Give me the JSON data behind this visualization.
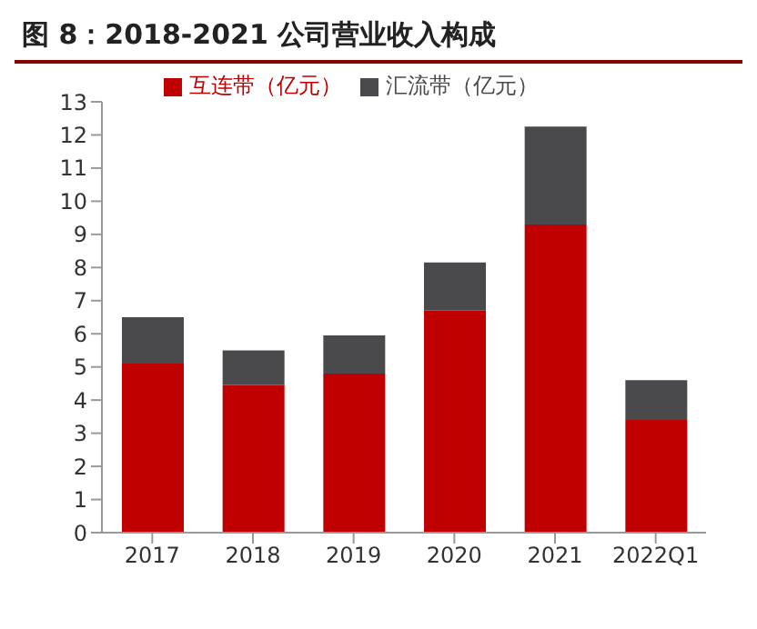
{
  "chart_data": {
    "type": "bar",
    "title": "图 8：2018-2021 公司营业收入构成",
    "categories": [
      "2017",
      "2018",
      "2019",
      "2020",
      "2021",
      "2022Q1"
    ],
    "stacked": true,
    "series": [
      {
        "name": "互连带（亿元）",
        "color": "#c00000",
        "values": [
          5.1,
          4.45,
          4.8,
          6.7,
          9.3,
          3.4
        ]
      },
      {
        "name": "汇流带（亿元）",
        "color": "#4a4a4c",
        "values": [
          1.4,
          1.05,
          1.15,
          1.45,
          2.95,
          1.2
        ]
      }
    ],
    "ylim": [
      0,
      13
    ],
    "yticks": [
      0,
      1,
      2,
      3,
      4,
      5,
      6,
      7,
      8,
      9,
      10,
      11,
      12,
      13
    ],
    "grid": false,
    "legend": "top"
  }
}
